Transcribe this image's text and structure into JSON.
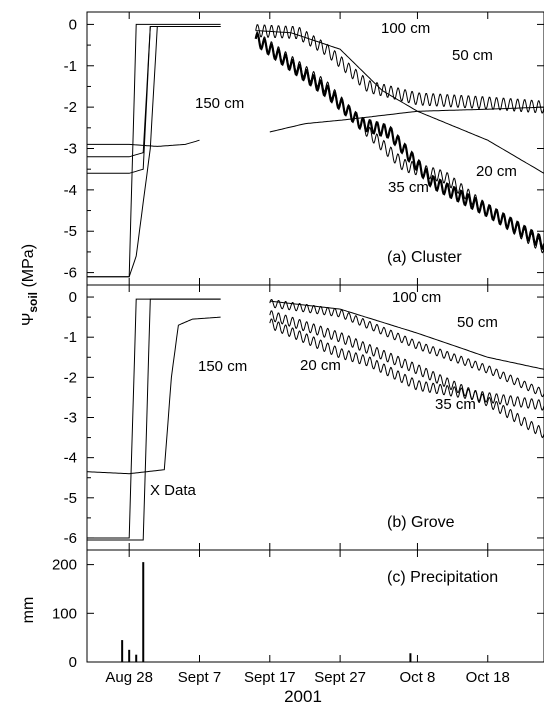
{
  "chart_data": [
    {
      "type": "line",
      "panel_label": "(a) Cluster",
      "ylabel_symbol": "Ψ",
      "ylabel_sub": "soil",
      "ylabel_unit": "(MPa)",
      "ylim": [
        -6.3,
        0.3
      ],
      "yticks": [
        0,
        -1,
        -2,
        -3,
        -4,
        -5,
        -6
      ],
      "xlim": [
        "2001-08-22",
        "2001-10-26"
      ],
      "grid": false,
      "series": [
        {
          "name": "150 cm",
          "points": [
            [
              "2001-08-22",
              -2.9
            ],
            [
              "2001-08-28",
              -2.9
            ],
            [
              "2001-09-01",
              -2.95
            ],
            [
              "2001-09-05",
              -2.9
            ],
            [
              "2001-09-07",
              -2.8
            ]
          ]
        },
        {
          "name": "",
          "points": [
            [
              "2001-08-22",
              -3.2
            ],
            [
              "2001-08-28",
              -3.2
            ],
            [
              "2001-08-30",
              -3.1
            ],
            [
              "2001-08-31",
              -0.05
            ],
            [
              "2001-09-10",
              -0.05
            ]
          ]
        },
        {
          "name": "",
          "points": [
            [
              "2001-08-22",
              -3.6
            ],
            [
              "2001-08-28",
              -3.6
            ],
            [
              "2001-08-30",
              -3.5
            ],
            [
              "2001-08-31",
              -0.05
            ],
            [
              "2001-09-10",
              -0.05
            ]
          ]
        },
        {
          "name": "",
          "points": [
            [
              "2001-08-22",
              -6.1
            ],
            [
              "2001-08-28",
              -6.1
            ],
            [
              "2001-08-29",
              -5.6
            ],
            [
              "2001-08-31",
              -3.0
            ],
            [
              "2001-09-01",
              -0.05
            ],
            [
              "2001-09-10",
              -0.05
            ]
          ]
        },
        {
          "name": "",
          "points": [
            [
              "2001-08-22",
              -6.1
            ],
            [
              "2001-08-28",
              -6.1
            ],
            [
              "2001-08-29",
              -0.0
            ],
            [
              "2001-09-10",
              -0.0
            ]
          ]
        },
        {
          "name": "100 cm",
          "points": [
            [
              "2001-09-15",
              -0.15
            ],
            [
              "2001-09-20",
              -0.2
            ],
            [
              "2001-09-27",
              -0.6
            ],
            [
              "2001-10-03",
              -1.6
            ],
            [
              "2001-10-08",
              -2.1
            ],
            [
              "2001-10-18",
              -2.8
            ],
            [
              "2001-10-26",
              -3.6
            ]
          ]
        },
        {
          "name": "50 cm",
          "points": [
            [
              "2001-09-15",
              -0.15
            ],
            [
              "2001-09-21",
              -0.2
            ],
            [
              "2001-09-25",
              -0.6
            ],
            [
              "2001-10-01",
              -1.5
            ],
            [
              "2001-10-08",
              -1.8
            ],
            [
              "2001-10-18",
              -1.9
            ],
            [
              "2001-10-26",
              -2.0
            ]
          ],
          "oscillate": 0.3
        },
        {
          "name": "",
          "points": [
            [
              "2001-09-17",
              -2.6
            ],
            [
              "2001-09-22",
              -2.4
            ],
            [
              "2001-09-28",
              -2.3
            ],
            [
              "2001-10-08",
              -2.1
            ],
            [
              "2001-10-18",
              -2.05
            ],
            [
              "2001-10-26",
              -2.0
            ]
          ]
        },
        {
          "name": "35 cm",
          "points": [
            [
              "2001-09-15",
              -0.3
            ],
            [
              "2001-09-25",
              -1.5
            ],
            [
              "2001-10-01",
              -2.6
            ],
            [
              "2001-10-06",
              -3.4
            ],
            [
              "2001-10-12",
              -3.7
            ],
            [
              "2001-10-18",
              -4.5
            ],
            [
              "2001-10-26",
              -5.4
            ]
          ],
          "oscillate": 0.3
        },
        {
          "name": "20 cm",
          "points": [
            [
              "2001-09-15",
              -0.35
            ],
            [
              "2001-09-25",
              -1.6
            ],
            [
              "2001-09-30",
              -2.4
            ],
            [
              "2001-10-04",
              -2.6
            ],
            [
              "2001-10-10",
              -3.8
            ],
            [
              "2001-10-18",
              -4.5
            ],
            [
              "2001-10-26",
              -5.3
            ]
          ],
          "oscillate": 0.3,
          "bold": true
        }
      ],
      "annotations": [
        "150 cm",
        "100 cm",
        "50 cm",
        "35 cm",
        "20 cm"
      ]
    },
    {
      "type": "line",
      "panel_label": "(b) Grove",
      "ylim": [
        -6.3,
        0.3
      ],
      "yticks": [
        0,
        -1,
        -2,
        -3,
        -4,
        -5,
        -6
      ],
      "xlim": [
        "2001-08-22",
        "2001-10-26"
      ],
      "grid": false,
      "series": [
        {
          "name": "X Data",
          "points": [
            [
              "2001-08-22",
              -4.35
            ],
            [
              "2001-08-28",
              -4.4
            ],
            [
              "2001-09-02",
              -4.3
            ],
            [
              "2001-09-03",
              -2.0
            ],
            [
              "2001-09-04",
              -0.7
            ],
            [
              "2001-09-06",
              -0.55
            ],
            [
              "2001-09-10",
              -0.5
            ]
          ]
        },
        {
          "name": "",
          "points": [
            [
              "2001-08-22",
              -6.0
            ],
            [
              "2001-08-28",
              -6.0
            ],
            [
              "2001-08-29",
              -0.05
            ],
            [
              "2001-09-10",
              -0.05
            ]
          ]
        },
        {
          "name": "",
          "points": [
            [
              "2001-08-22",
              -6.05
            ],
            [
              "2001-08-30",
              -6.05
            ],
            [
              "2001-08-31",
              -0.05
            ],
            [
              "2001-09-10",
              -0.05
            ]
          ]
        },
        {
          "name": "100 cm",
          "points": [
            [
              "2001-09-17",
              -0.1
            ],
            [
              "2001-09-27",
              -0.3
            ],
            [
              "2001-10-08",
              -0.9
            ],
            [
              "2001-10-18",
              -1.5
            ],
            [
              "2001-10-26",
              -1.8
            ]
          ]
        },
        {
          "name": "50 cm",
          "points": [
            [
              "2001-09-17",
              -0.15
            ],
            [
              "2001-09-27",
              -0.4
            ],
            [
              "2001-10-08",
              -1.2
            ],
            [
              "2001-10-18",
              -1.8
            ],
            [
              "2001-10-26",
              -2.4
            ]
          ],
          "oscillate": 0.2
        },
        {
          "name": "35 cm",
          "points": [
            [
              "2001-09-17",
              -0.45
            ],
            [
              "2001-09-27",
              -1.0
            ],
            [
              "2001-10-08",
              -1.8
            ],
            [
              "2001-10-18",
              -2.6
            ],
            [
              "2001-10-26",
              -3.4
            ]
          ],
          "oscillate": 0.25
        },
        {
          "name": "20 cm",
          "points": [
            [
              "2001-09-17",
              -0.65
            ],
            [
              "2001-09-27",
              -1.4
            ],
            [
              "2001-10-01",
              -1.6
            ],
            [
              "2001-10-08",
              -2.2
            ],
            [
              "2001-10-18",
              -2.5
            ],
            [
              "2001-10-26",
              -2.7
            ]
          ],
          "oscillate": 0.25
        }
      ],
      "annotations": [
        "150 cm",
        "100 cm",
        "50 cm",
        "35 cm",
        "20 cm",
        "X Data"
      ]
    },
    {
      "type": "bar",
      "panel_label": "(c) Precipitation",
      "ylabel": "mm",
      "ylim": [
        0,
        230
      ],
      "yticks": [
        0,
        100,
        200
      ],
      "xlim": [
        "2001-08-22",
        "2001-10-26"
      ],
      "bars": [
        {
          "x": "2001-08-27",
          "v": 45
        },
        {
          "x": "2001-08-28",
          "v": 25
        },
        {
          "x": "2001-08-29",
          "v": 15
        },
        {
          "x": "2001-08-30",
          "v": 205
        },
        {
          "x": "2001-10-07",
          "v": 18
        }
      ]
    }
  ],
  "x_axis": {
    "tick_labels": [
      "Aug 28",
      "Sept 7",
      "Sept 17",
      "Sept 27",
      "Oct 8",
      "Oct 18"
    ],
    "tick_dates": [
      "2001-08-28",
      "2001-09-07",
      "2001-09-17",
      "2001-09-27",
      "2001-10-08",
      "2001-10-18"
    ],
    "year_label": "2001"
  }
}
